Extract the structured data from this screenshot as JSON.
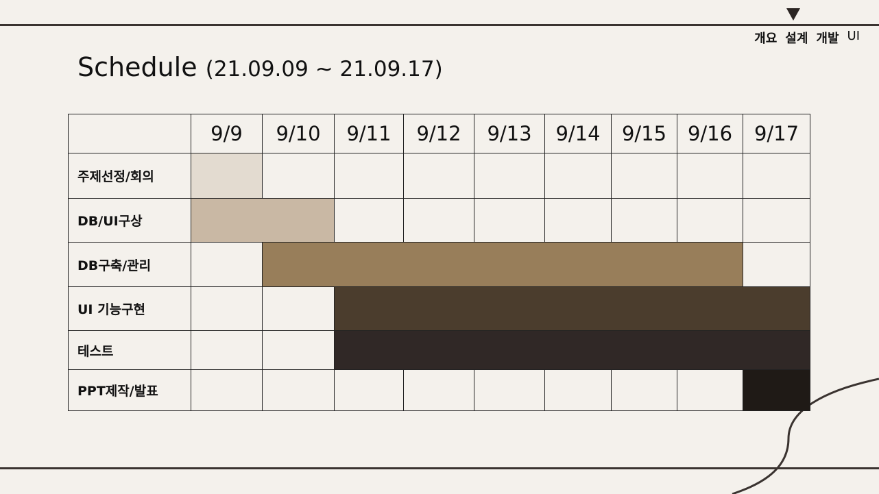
{
  "nav": {
    "items": [
      "개요",
      "설계",
      "개발"
    ],
    "current": "UI"
  },
  "title": {
    "main": "Schedule",
    "range": "(21.09.09 ~ 21.09.17)"
  },
  "schedule": {
    "dates": [
      "9/9",
      "9/10",
      "9/11",
      "9/12",
      "9/13",
      "9/14",
      "9/15",
      "9/16",
      "9/17"
    ],
    "tasks": [
      {
        "label": "주제선정/회의",
        "start": 0,
        "end": 0,
        "color": "#e3dbd0"
      },
      {
        "label": "DB/UI구상",
        "start": 0,
        "end": 1,
        "color": "#c9b8a4"
      },
      {
        "label": "DB구축/관리",
        "start": 1,
        "end": 7,
        "color": "#987e5a"
      },
      {
        "label": "UI 기능구현",
        "start": 2,
        "end": 8,
        "color": "#4b3d2d"
      },
      {
        "label": "테스트",
        "start": 2,
        "end": 8,
        "color": "#302826"
      },
      {
        "label": "PPT제작/발표",
        "start": 8,
        "end": 8,
        "color": "#1f1a16"
      }
    ]
  },
  "colors": {
    "background": "#f4f1ec",
    "line": "#3a3330"
  }
}
